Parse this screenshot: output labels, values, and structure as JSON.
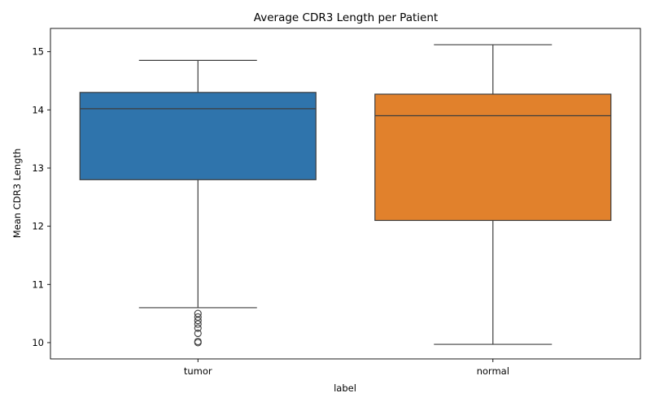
{
  "chart_data": {
    "type": "box",
    "title": "Average CDR3 Length per Patient",
    "xlabel": "label",
    "ylabel": "Mean CDR3 Length",
    "categories": [
      "tumor",
      "normal"
    ],
    "ylim": [
      9.72,
      15.4
    ],
    "yticks": [
      10,
      11,
      12,
      13,
      14,
      15
    ],
    "grid": false,
    "boxes": [
      {
        "category": "tumor",
        "color": "#2f74ac",
        "whisker_low": 10.6,
        "q1": 12.8,
        "median": 14.02,
        "q3": 14.3,
        "whisker_high": 14.85,
        "outliers": [
          10.5,
          10.44,
          10.38,
          10.32,
          10.25,
          10.16,
          10.02,
          10.0
        ]
      },
      {
        "category": "normal",
        "color": "#e1812c",
        "whisker_low": 9.97,
        "q1": 12.1,
        "median": 13.9,
        "q3": 14.27,
        "whisker_high": 15.12,
        "outliers": []
      }
    ]
  }
}
